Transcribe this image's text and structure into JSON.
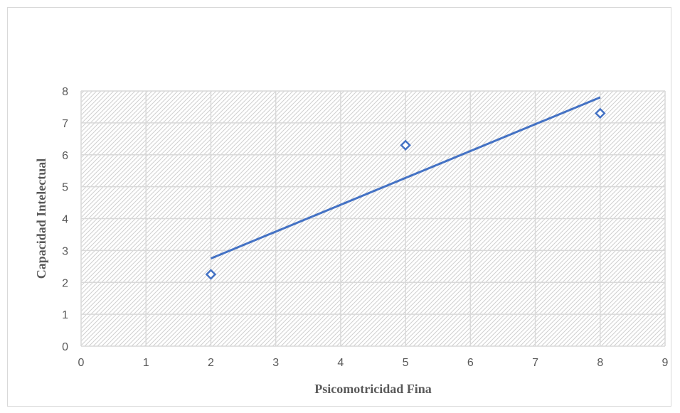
{
  "chart_data": {
    "type": "scatter",
    "title": "",
    "xlabel": "Psicomotricidad Fina",
    "ylabel": "Capacidad Intelectual",
    "xlim": [
      0,
      9
    ],
    "ylim": [
      0,
      8
    ],
    "x_ticks": [
      "0",
      "1",
      "2",
      "3",
      "4",
      "5",
      "6",
      "7",
      "8",
      "9"
    ],
    "y_ticks": [
      "0",
      "1",
      "2",
      "3",
      "4",
      "5",
      "6",
      "7",
      "8"
    ],
    "grid": true,
    "legend": "none",
    "series": [
      {
        "marker": "diamond-open",
        "color": "#4472c4",
        "x": [
          2,
          5,
          8
        ],
        "y": [
          2.25,
          6.3,
          7.3
        ]
      }
    ],
    "trendline": {
      "type": "linear",
      "color": "#4472c4",
      "x": [
        2,
        8
      ],
      "y": [
        2.75,
        7.8
      ]
    }
  }
}
